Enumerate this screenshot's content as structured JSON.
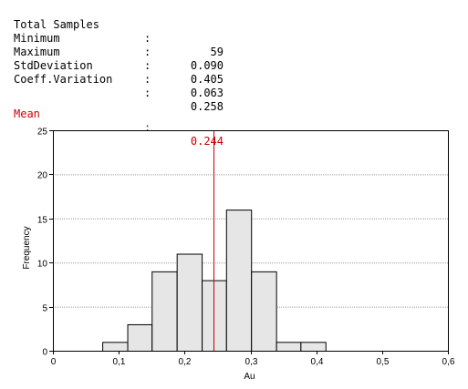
{
  "stats": {
    "rows": [
      {
        "label": "Total Samples",
        "colon": ":",
        "value": "59"
      },
      {
        "label": "Minimum",
        "colon": ":",
        "value": "0.090"
      },
      {
        "label": "Maximum",
        "colon": ":",
        "value": "0.405"
      },
      {
        "label": "StdDeviation",
        "colon": ":",
        "value": "0.063"
      },
      {
        "label": "Coeff.Variation",
        "colon": ":",
        "value": "0.258"
      }
    ],
    "mean": {
      "label": "Mean",
      "colon": ":",
      "value": "0.244"
    }
  },
  "colors": {
    "mean": "#cc0000",
    "bar_fill": "#e6e6e6",
    "bar_stroke": "#000000",
    "grid": "#a0a0a0"
  },
  "chart_data": {
    "type": "bar",
    "xlabel": "Au",
    "ylabel": "Frequency",
    "xlim": [
      0,
      0.6
    ],
    "ylim": [
      0,
      25
    ],
    "x_ticks": [
      "0",
      "0,1",
      "0,2",
      "0,3",
      "0,4",
      "0,5",
      "0,6"
    ],
    "y_ticks": [
      "0",
      "5",
      "10",
      "15",
      "20",
      "25"
    ],
    "grid": true,
    "mean": 0.244,
    "bins": [
      {
        "start": 0.075,
        "end": 0.113,
        "count": 1
      },
      {
        "start": 0.113,
        "end": 0.15,
        "count": 3
      },
      {
        "start": 0.15,
        "end": 0.188,
        "count": 9
      },
      {
        "start": 0.188,
        "end": 0.226,
        "count": 11
      },
      {
        "start": 0.226,
        "end": 0.263,
        "count": 8
      },
      {
        "start": 0.263,
        "end": 0.301,
        "count": 16
      },
      {
        "start": 0.301,
        "end": 0.339,
        "count": 9
      },
      {
        "start": 0.339,
        "end": 0.376,
        "count": 1
      },
      {
        "start": 0.376,
        "end": 0.414,
        "count": 1
      }
    ]
  }
}
